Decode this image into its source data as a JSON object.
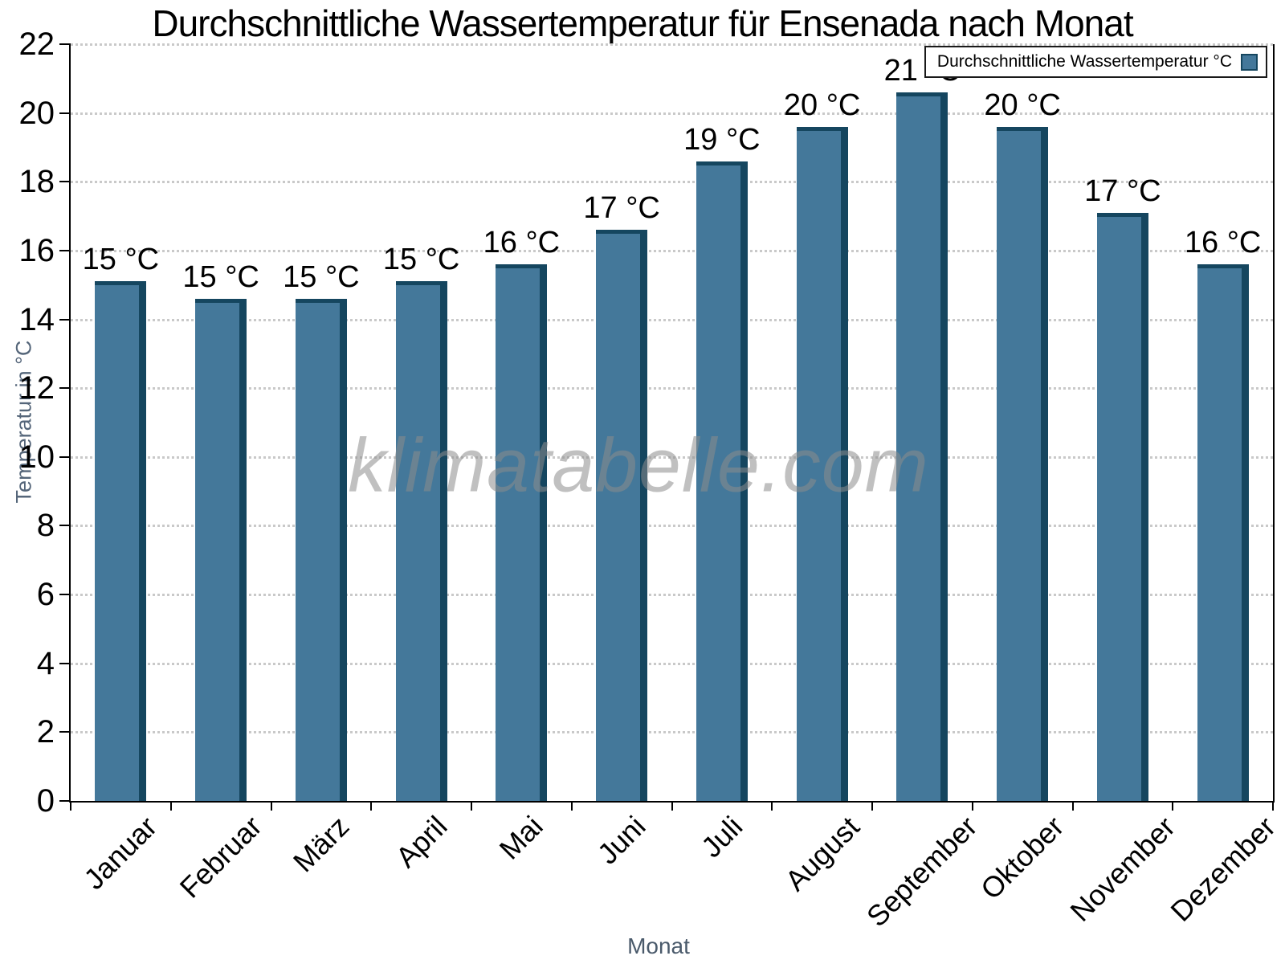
{
  "title": "Durchschnittliche Wassertemperatur für Ensenada nach Monat",
  "watermark": "klimatabelle.com",
  "legend": {
    "label": "Durchschnittliche Wassertemperatur °C"
  },
  "axes": {
    "xlabel": "Monat",
    "ylabel": "Temperatur in °C"
  },
  "chart_data": {
    "type": "bar",
    "title": "Durchschnittliche Wassertemperatur für Ensenada nach Monat",
    "xlabel": "Monat",
    "ylabel": "Temperatur in °C",
    "ylim": [
      0,
      22
    ],
    "ytick_step": 2,
    "grid": "horizontal-dotted",
    "legend_position": "top-right",
    "legend_label": "Durchschnittliche Wassertemperatur °C",
    "categories": [
      "Januar",
      "Februar",
      "März",
      "April",
      "Mai",
      "Juni",
      "Juli",
      "August",
      "September",
      "Oktober",
      "November",
      "Dezember"
    ],
    "values": [
      15.1,
      14.6,
      14.6,
      15.1,
      15.6,
      16.6,
      18.6,
      19.6,
      20.6,
      19.6,
      17.1,
      15.6
    ],
    "bar_labels": [
      "15 °C",
      "15 °C",
      "15 °C",
      "15 °C",
      "16 °C",
      "17 °C",
      "19 °C",
      "20 °C",
      "21 °C",
      "20 °C",
      "17 °C",
      "16 °C"
    ],
    "bar_face_color": "#44789A",
    "bar_edge_color": "#15465F",
    "gridline_color": "#c9c9c9",
    "axis_color": "#000000"
  }
}
